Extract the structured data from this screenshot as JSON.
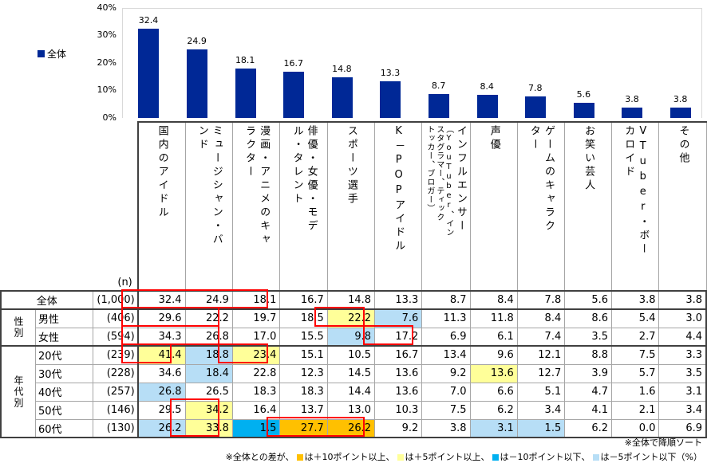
{
  "legend": {
    "label": "全体",
    "color": "#002896"
  },
  "y_axis": {
    "ticks": [
      "40%",
      "30%",
      "20%",
      "10%",
      "0%"
    ]
  },
  "n_header": "(n)",
  "columns": [
    "国内のアイドル",
    "ミュージシャン・バンド",
    "漫画・アニメのキャラクター",
    "俳優・女優・モデル・タレント",
    "スポーツ選手",
    "K－POPアイドル",
    "インフルエンサー（YouTuber、インスタグラマー、ティックトッカー、ブロガー）",
    "声優",
    "ゲームのキャラクター",
    "お笑い芸人",
    "VTuber・ボーカロイド",
    "その他"
  ],
  "column_lines": [
    [
      "国内のアイドル"
    ],
    [
      "ミュージシャン・バ",
      "ンド"
    ],
    [
      "漫画・アニメのキャ",
      "ラクター"
    ],
    [
      "俳優・女優・モデ",
      "ル・タレント"
    ],
    [
      "スポーツ選手"
    ],
    [
      "K－POPアイドル"
    ],
    [
      "インフルエンサー",
      "（YouTuber、イン",
      "スタグラマー、ティック",
      "トッカー、ブロガー）"
    ],
    [
      "声優"
    ],
    [
      "ゲームのキャラク",
      "ター"
    ],
    [
      "お笑い芸人"
    ],
    [
      "VTuber・ボー",
      "カロイド"
    ],
    [
      "その他"
    ]
  ],
  "groups": {
    "gender": "性別",
    "age": "年代別"
  },
  "rows": [
    {
      "label": "全体",
      "n": "(1,000)",
      "values": [
        "32.4",
        "24.9",
        "18.1",
        "16.7",
        "14.8",
        "13.3",
        "8.7",
        "8.4",
        "7.8",
        "5.6",
        "3.8",
        "3.8"
      ],
      "colors": [
        "",
        "",
        "",
        "",
        "",
        "",
        "",
        "",
        "",
        "",
        "",
        ""
      ]
    },
    {
      "label": "男性",
      "n": "(406)",
      "values": [
        "29.6",
        "22.2",
        "19.7",
        "18.5",
        "22.2",
        "7.6",
        "11.3",
        "11.8",
        "8.4",
        "8.6",
        "5.4",
        "3.0"
      ],
      "colors": [
        "",
        "",
        "",
        "",
        "yellow",
        "lblue",
        "",
        "",
        "",
        "",
        "",
        ""
      ]
    },
    {
      "label": "女性",
      "n": "(594)",
      "values": [
        "34.3",
        "26.8",
        "17.0",
        "15.5",
        "9.8",
        "17.2",
        "6.9",
        "6.1",
        "7.4",
        "3.5",
        "2.7",
        "4.4"
      ],
      "colors": [
        "",
        "",
        "",
        "",
        "lblue",
        "",
        "",
        "",
        "",
        "",
        "",
        ""
      ]
    },
    {
      "label": "20代",
      "n": "(239)",
      "values": [
        "41.4",
        "18.8",
        "23.4",
        "15.1",
        "10.5",
        "16.7",
        "13.4",
        "9.6",
        "12.1",
        "8.8",
        "7.5",
        "3.3"
      ],
      "colors": [
        "yellow",
        "lblue",
        "yellow",
        "",
        "",
        "",
        "",
        "",
        "",
        "",
        "",
        ""
      ]
    },
    {
      "label": "30代",
      "n": "(228)",
      "values": [
        "34.6",
        "18.4",
        "22.8",
        "12.3",
        "14.5",
        "13.6",
        "9.2",
        "13.6",
        "12.7",
        "3.9",
        "5.7",
        "3.5"
      ],
      "colors": [
        "",
        "lblue",
        "",
        "",
        "",
        "",
        "",
        "yellow",
        "",
        "",
        "",
        ""
      ]
    },
    {
      "label": "40代",
      "n": "(257)",
      "values": [
        "26.8",
        "26.5",
        "18.3",
        "18.3",
        "14.4",
        "13.6",
        "7.0",
        "6.6",
        "5.1",
        "4.7",
        "1.6",
        "3.1"
      ],
      "colors": [
        "lblue",
        "",
        "",
        "",
        "",
        "",
        "",
        "",
        "",
        "",
        "",
        ""
      ]
    },
    {
      "label": "50代",
      "n": "(146)",
      "values": [
        "29.5",
        "34.2",
        "16.4",
        "13.7",
        "13.0",
        "10.3",
        "7.5",
        "6.2",
        "3.4",
        "4.1",
        "2.1",
        "3.4"
      ],
      "colors": [
        "",
        "yellow",
        "",
        "",
        "",
        "",
        "",
        "",
        "",
        "",
        "",
        ""
      ]
    },
    {
      "label": "60代",
      "n": "(130)",
      "values": [
        "26.2",
        "33.8",
        "1.5",
        "27.7",
        "26.2",
        "9.2",
        "3.8",
        "3.1",
        "1.5",
        "6.2",
        "0.0",
        "6.9"
      ],
      "colors": [
        "lblue",
        "yellow",
        "blue",
        "orange",
        "orange",
        "",
        "",
        "lblue",
        "lblue",
        "",
        "",
        ""
      ]
    }
  ],
  "notes": {
    "sort": "※全体で降順ソート",
    "prefix": "※全体との差が、",
    "orange": "は＋10ポイント以上、",
    "yellow": "は＋5ポイント以上、",
    "blue": "は－10ポイント以下、",
    "lblue": "は－5ポイント以下（%）"
  },
  "colors": {
    "orange": "#FFC000",
    "yellow": "#FFFF99",
    "blue": "#00B0F0",
    "lblue": "#B7DEF6",
    "bar": "#002896",
    "highlight_border": "#FF0000"
  },
  "chart_data": {
    "type": "bar",
    "title": "",
    "categories": [
      "国内のアイドル",
      "ミュージシャン・バンド",
      "漫画・アニメのキャラクター",
      "俳優・女優・モデル・タレント",
      "スポーツ選手",
      "K－POPアイドル",
      "インフルエンサー（YouTuber、インスタグラマー、ティックトッカー、ブロガー）",
      "声優",
      "ゲームのキャラクター",
      "お笑い芸人",
      "VTuber・ボーカロイド",
      "その他"
    ],
    "series": [
      {
        "name": "全体",
        "values": [
          32.4,
          24.9,
          18.1,
          16.7,
          14.8,
          13.3,
          8.7,
          8.4,
          7.8,
          5.6,
          3.8,
          3.8
        ]
      }
    ],
    "xlabel": "",
    "ylabel": "",
    "ylim": [
      0,
      40
    ],
    "yticks": [
      "0%",
      "10%",
      "20%",
      "30%",
      "40%"
    ],
    "legend_position": "left",
    "grid": false,
    "table": {
      "row_groups": {
        "性別": [
          "男性",
          "女性"
        ],
        "年代別": [
          "20代",
          "30代",
          "40代",
          "50代",
          "60代"
        ]
      },
      "rows": {
        "全体": {
          "n": 1000,
          "values": [
            32.4,
            24.9,
            18.1,
            16.7,
            14.8,
            13.3,
            8.7,
            8.4,
            7.8,
            5.6,
            3.8,
            3.8
          ]
        },
        "男性": {
          "n": 406,
          "values": [
            29.6,
            22.2,
            19.7,
            18.5,
            22.2,
            7.6,
            11.3,
            11.8,
            8.4,
            8.6,
            5.4,
            3.0
          ]
        },
        "女性": {
          "n": 594,
          "values": [
            34.3,
            26.8,
            17.0,
            15.5,
            9.8,
            17.2,
            6.9,
            6.1,
            7.4,
            3.5,
            2.7,
            4.4
          ]
        },
        "20代": {
          "n": 239,
          "values": [
            41.4,
            18.8,
            23.4,
            15.1,
            10.5,
            16.7,
            13.4,
            9.6,
            12.1,
            8.8,
            7.5,
            3.3
          ]
        },
        "30代": {
          "n": 228,
          "values": [
            34.6,
            18.4,
            22.8,
            12.3,
            14.5,
            13.6,
            9.2,
            13.6,
            12.7,
            3.9,
            5.7,
            3.5
          ]
        },
        "40代": {
          "n": 257,
          "values": [
            26.8,
            26.5,
            18.3,
            18.3,
            14.4,
            13.6,
            7.0,
            6.6,
            5.1,
            4.7,
            1.6,
            3.1
          ]
        },
        "50代": {
          "n": 146,
          "values": [
            29.5,
            34.2,
            16.4,
            13.7,
            13.0,
            10.3,
            7.5,
            6.2,
            3.4,
            4.1,
            2.1,
            3.4
          ]
        },
        "60代": {
          "n": 130,
          "values": [
            26.2,
            33.8,
            1.5,
            27.7,
            26.2,
            9.2,
            3.8,
            3.1,
            1.5,
            6.2,
            0.0,
            6.9
          ]
        }
      }
    },
    "annotations": [
      "※全体で降順ソート",
      "※全体との差が、■は＋10ポイント以上、■は＋5ポイント以上、■は－10ポイント以下、■は－5ポイント以下（%）"
    ]
  }
}
